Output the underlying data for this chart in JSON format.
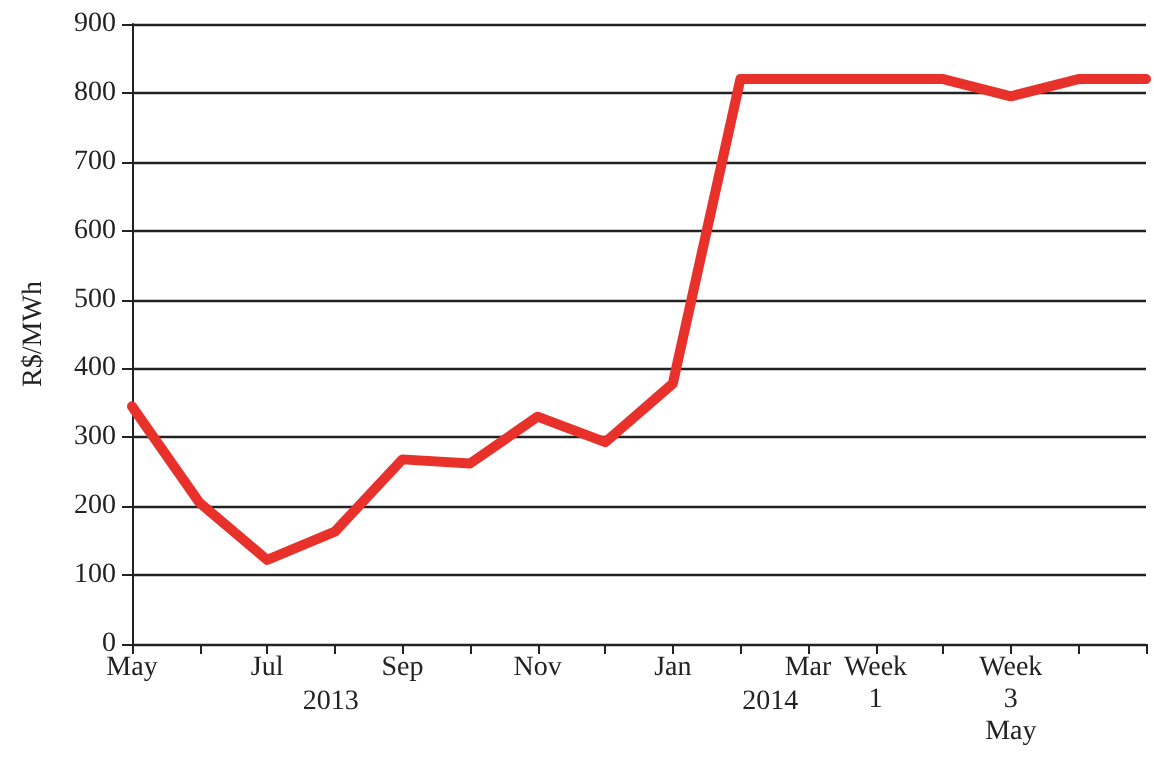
{
  "chart_data": {
    "type": "line",
    "ylabel": "R$/MWh",
    "categories": [
      "May",
      null,
      "Jul",
      null,
      "Sep",
      null,
      "Nov",
      null,
      "Jan",
      null,
      "Mar",
      "Week\n1",
      null,
      "Week\n3\nMay",
      null,
      null
    ],
    "series": [
      {
        "color": "#e8312a",
        "values": [
          345,
          205,
          122,
          163,
          268,
          262,
          330,
          293,
          378,
          820,
          820,
          820,
          820,
          795,
          820,
          820
        ]
      }
    ],
    "ylim": [
      0,
      900
    ],
    "yticks": [
      0,
      100,
      200,
      300,
      400,
      500,
      600,
      700,
      800,
      900
    ],
    "grid": "y",
    "marker": "none",
    "line_style": "solid",
    "annotations": [
      "2013",
      "2014"
    ]
  }
}
